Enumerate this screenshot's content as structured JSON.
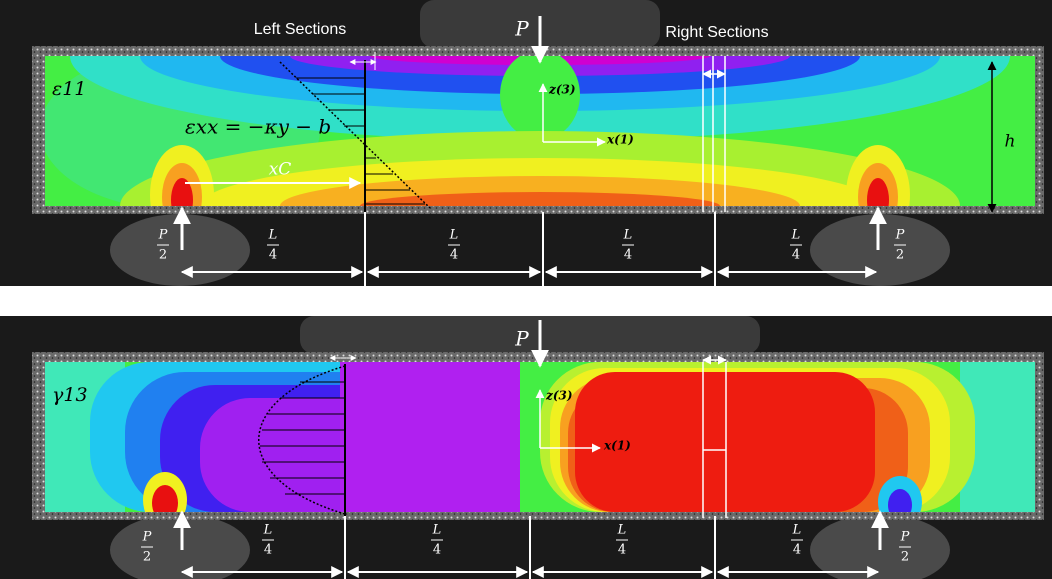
{
  "panels": [
    {
      "field_label": "ε11",
      "load": "P",
      "section_labels": [
        "Left Sections",
        "Right Sections"
      ],
      "equation": "εxx = −κy − b",
      "distance_label": "xC",
      "z_axis": "z(3)",
      "x_axis": "x(1)",
      "height_label": "h",
      "support_loads": [
        {
          "numerator": "P",
          "denominator": "2"
        },
        {
          "numerator": "P",
          "denominator": "2"
        }
      ],
      "span_labels": [
        {
          "numerator": "L",
          "denominator": "4"
        },
        {
          "numerator": "L",
          "denominator": "4"
        },
        {
          "numerator": "L",
          "denominator": "4"
        },
        {
          "numerator": "L",
          "denominator": "4"
        }
      ]
    },
    {
      "field_label": "γ13",
      "load": "P",
      "z_axis": "z(3)",
      "x_axis": "x(1)",
      "support_loads": [
        {
          "numerator": "P",
          "denominator": "2"
        },
        {
          "numerator": "P",
          "denominator": "2"
        }
      ],
      "span_labels": [
        {
          "numerator": "L",
          "denominator": "4"
        },
        {
          "numerator": "L",
          "denominator": "4"
        },
        {
          "numerator": "L",
          "denominator": "4"
        },
        {
          "numerator": "L",
          "denominator": "4"
        }
      ]
    }
  ]
}
